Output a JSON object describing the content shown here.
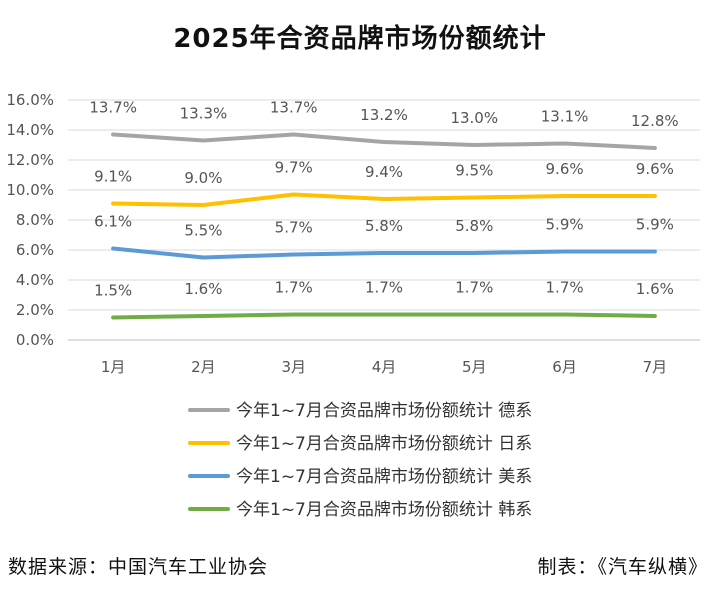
{
  "chart_data": {
    "type": "line",
    "title": "2025年合资品牌市场份额统计",
    "categories": [
      "1月",
      "2月",
      "3月",
      "4月",
      "5月",
      "6月",
      "7月"
    ],
    "y_ticks": [
      "0.0%",
      "2.0%",
      "4.0%",
      "6.0%",
      "8.0%",
      "10.0%",
      "12.0%",
      "14.0%",
      "16.0%"
    ],
    "ylim": [
      0,
      16
    ],
    "grid": true,
    "legend_position": "bottom",
    "series": [
      {
        "name": "今年1~7月合资品牌市场份额统计 德系",
        "color": "#A5A5A5",
        "values": [
          13.7,
          13.3,
          13.7,
          13.2,
          13.0,
          13.1,
          12.8
        ],
        "labels": [
          "13.7%",
          "13.3%",
          "13.7%",
          "13.2%",
          "13.0%",
          "13.1%",
          "12.8%"
        ]
      },
      {
        "name": "今年1~7月合资品牌市场份额统计 日系",
        "color": "#FFC000",
        "values": [
          9.1,
          9.0,
          9.7,
          9.4,
          9.5,
          9.6,
          9.6
        ],
        "labels": [
          "9.1%",
          "9.0%",
          "9.7%",
          "9.4%",
          "9.5%",
          "9.6%",
          "9.6%"
        ]
      },
      {
        "name": "今年1~7月合资品牌市场份额统计 美系",
        "color": "#5B9BD5",
        "values": [
          6.1,
          5.5,
          5.7,
          5.8,
          5.8,
          5.9,
          5.9
        ],
        "labels": [
          "6.1%",
          "5.5%",
          "5.7%",
          "5.8%",
          "5.8%",
          "5.9%",
          "5.9%"
        ]
      },
      {
        "name": "今年1~7月合资品牌市场份额统计 韩系",
        "color": "#70AD47",
        "values": [
          1.5,
          1.6,
          1.7,
          1.7,
          1.7,
          1.7,
          1.6
        ],
        "labels": [
          "1.5%",
          "1.6%",
          "1.7%",
          "1.7%",
          "1.7%",
          "1.7%",
          "1.6%"
        ]
      }
    ]
  },
  "footer": {
    "source": "数据来源：中国汽车工业协会",
    "credit": "制表：《汽车纵横》"
  }
}
